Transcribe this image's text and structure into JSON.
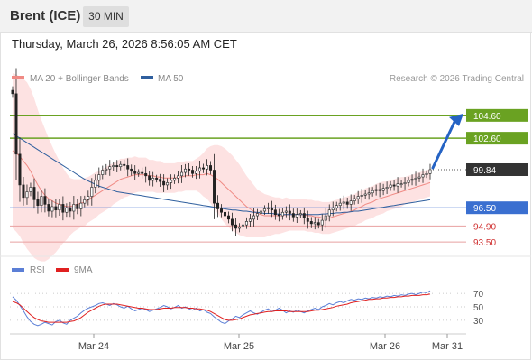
{
  "header": {
    "instrument": "Brent (ICE)",
    "timeframe": "30 MIN",
    "datetime": "Thursday, March 26, 2026 8:56:05 AM CET"
  },
  "legend": {
    "ma20": {
      "label": "MA 20 + Bollinger Bands",
      "color": "#f08a84"
    },
    "ma50": {
      "label": "MA 50",
      "color": "#2f5f9e"
    },
    "copyright": "Research © 2026 Trading Central"
  },
  "rsi_legend": {
    "rsi": {
      "label": "RSI",
      "color": "#5b7fd6"
    },
    "ma9": {
      "label": "9MA",
      "color": "#e02020"
    }
  },
  "colors": {
    "resistance": "#6aa222",
    "support": "#3a6fd0",
    "bollinger_fill": "#fde2e2",
    "price_tag": "#333333",
    "arrow": "#2563c4",
    "support_line2": "#e8a0a0"
  },
  "chart_data": [
    {
      "type": "candlestick",
      "panel": "price",
      "x_ticks": [
        "Mar 24",
        "Mar 25",
        "Mar 26",
        "Mar 31"
      ],
      "ylim": [
        92.4,
        107.2
      ],
      "last_price": 99.84,
      "levels": [
        {
          "value": 104.6,
          "label": "104.60",
          "kind": "resistance"
        },
        {
          "value": 102.6,
          "label": "102.60",
          "kind": "resistance"
        },
        {
          "value": 96.5,
          "label": "96.50",
          "kind": "support"
        },
        {
          "value": 94.9,
          "label": "94.90",
          "kind": "support2"
        },
        {
          "value": 93.5,
          "label": "93.50",
          "kind": "support2"
        }
      ],
      "close": [
        106.5,
        101.2,
        98.5,
        97.4,
        97.9,
        98.3,
        97.2,
        96.7,
        97.5,
        96.8,
        96.2,
        96.6,
        96.3,
        96.8,
        96.1,
        96.5,
        96.2,
        96.8,
        96.4,
        96.9,
        97.2,
        97.5,
        98.3,
        98.9,
        99.4,
        99.8,
        99.9,
        100.1,
        100.2,
        100.1,
        100.3,
        100.2,
        99.9,
        99.7,
        99.5,
        99.6,
        99.5,
        99.3,
        98.9,
        99.1,
        99.0,
        98.8,
        98.5,
        98.7,
        98.9,
        99.1,
        99.3,
        99.6,
        99.9,
        99.8,
        99.5,
        99.7,
        100.0,
        99.9,
        100.2,
        99.8,
        96.9,
        96.4,
        96.1,
        95.8,
        95.5,
        95.0,
        94.7,
        94.8,
        95.0,
        95.3,
        95.5,
        95.8,
        96.0,
        96.2,
        96.4,
        96.5,
        96.3,
        95.9,
        95.8,
        96.1,
        96.2,
        96.0,
        95.7,
        95.9,
        96.0,
        95.6,
        95.3,
        95.1,
        95.2,
        95.0,
        95.4,
        95.8,
        96.3,
        96.5,
        96.7,
        96.9,
        97.0,
        96.8,
        97.1,
        97.3,
        97.5,
        97.6,
        97.7,
        97.8,
        98.0,
        98.1,
        98.0,
        98.2,
        98.3,
        98.5,
        98.4,
        98.6,
        98.6,
        98.7,
        98.9,
        99.0,
        99.1,
        99.2,
        99.4,
        99.5,
        99.84
      ],
      "ma20": [
        101.5,
        101.3,
        101.0,
        100.6,
        100.2,
        99.7,
        99.1,
        98.5,
        98.0,
        97.6,
        97.3,
        97.1,
        96.9,
        96.8,
        96.7,
        96.6,
        96.6,
        96.7,
        96.8,
        96.9,
        97.0,
        97.2,
        97.4,
        97.6,
        97.8,
        98.0,
        98.2,
        98.4,
        98.6,
        98.8,
        99.0,
        99.1,
        99.2,
        99.3,
        99.4,
        99.4,
        99.4,
        99.4,
        99.3,
        99.3,
        99.2,
        99.2,
        99.1,
        99.1,
        99.1,
        99.1,
        99.2,
        99.2,
        99.3,
        99.3,
        99.3,
        99.4,
        99.4,
        99.4,
        99.5,
        99.4,
        99.2,
        99.0,
        98.7,
        98.4,
        98.1,
        97.8,
        97.5,
        97.2,
        96.9,
        96.6,
        96.4,
        96.2,
        96.0,
        95.9,
        95.8,
        95.8,
        95.8,
        95.8,
        95.8,
        95.8,
        95.9,
        95.9,
        95.9,
        95.9,
        95.9,
        95.9,
        95.8,
        95.8,
        95.7,
        95.7,
        95.6,
        95.6,
        95.6,
        95.7,
        95.8,
        95.9,
        96.0,
        96.1,
        96.2,
        96.3,
        96.5,
        96.6,
        96.8,
        96.9,
        97.0,
        97.2,
        97.3,
        97.4,
        97.5,
        97.6,
        97.7,
        97.8,
        97.9,
        98.0,
        98.1,
        98.2,
        98.3,
        98.4,
        98.5,
        98.6,
        98.7
      ],
      "ma50": [
        103.0,
        102.8,
        102.6,
        102.4,
        102.2,
        102.0,
        101.8,
        101.6,
        101.4,
        101.2,
        101.0,
        100.8,
        100.6,
        100.4,
        100.2,
        100.0,
        99.8,
        99.6,
        99.4,
        99.2,
        99.0,
        98.85,
        98.7,
        98.55,
        98.4,
        98.3,
        98.2,
        98.1,
        98.0,
        97.9,
        97.85,
        97.8,
        97.75,
        97.7,
        97.65,
        97.6,
        97.55,
        97.5,
        97.45,
        97.4,
        97.35,
        97.3,
        97.25,
        97.2,
        97.15,
        97.1,
        97.05,
        97.0,
        96.95,
        96.9,
        96.85,
        96.8,
        96.75,
        96.7,
        96.65,
        96.6,
        96.55,
        96.5,
        96.45,
        96.4,
        96.35,
        96.3,
        96.3,
        96.25,
        96.2,
        96.2,
        96.15,
        96.1,
        96.1,
        96.05,
        96.0,
        96.0,
        96.0,
        95.95,
        95.95,
        95.9,
        95.9,
        95.9,
        95.9,
        95.9,
        95.9,
        95.9,
        95.9,
        95.9,
        95.9,
        95.9,
        95.95,
        95.95,
        96.0,
        96.0,
        96.05,
        96.05,
        96.1,
        96.1,
        96.15,
        96.2,
        96.2,
        96.25,
        96.3,
        96.35,
        96.4,
        96.45,
        96.5,
        96.55,
        96.6,
        96.65,
        96.7,
        96.75,
        96.8,
        96.85,
        96.9,
        96.95,
        97.0,
        97.05,
        97.1,
        97.15,
        97.2
      ],
      "bb_width": [
        6.8,
        6.9,
        7.0,
        7.2,
        7.3,
        7.2,
        7.0,
        6.6,
        6.2,
        5.8,
        5.3,
        4.8,
        4.3,
        3.8,
        3.3,
        2.9,
        2.5,
        2.3,
        2.2,
        2.1,
        2.1,
        2.0,
        2.0,
        2.0,
        1.9,
        1.9,
        1.9,
        1.9,
        1.8,
        1.8,
        1.8,
        1.7,
        1.7,
        1.6,
        1.6,
        1.5,
        1.5,
        1.5,
        1.4,
        1.4,
        1.4,
        1.4,
        1.3,
        1.3,
        1.3,
        1.3,
        1.3,
        1.3,
        1.3,
        1.3,
        1.3,
        1.4,
        1.6,
        1.9,
        2.2,
        2.5,
        2.8,
        3.0,
        3.2,
        3.3,
        3.3,
        3.3,
        3.2,
        3.1,
        2.9,
        2.7,
        2.5,
        2.3,
        2.1,
        2.0,
        1.9,
        1.8,
        1.7,
        1.6,
        1.6,
        1.5,
        1.5,
        1.4,
        1.4,
        1.4,
        1.4,
        1.4,
        1.4,
        1.4,
        1.4,
        1.4,
        1.4,
        1.4,
        1.4,
        1.4,
        1.4,
        1.4,
        1.4,
        1.4,
        1.4,
        1.4,
        1.4,
        1.4,
        1.4,
        1.4,
        1.4,
        1.4,
        1.4,
        1.4,
        1.3,
        1.3,
        1.3,
        1.3,
        1.3,
        1.2,
        1.2,
        1.2,
        1.2,
        1.2,
        1.2,
        1.2,
        1.2
      ]
    },
    {
      "type": "line",
      "panel": "rsi",
      "ylim": [
        15,
        85
      ],
      "y_ticks": [
        70,
        50,
        30
      ],
      "rsi": [
        65,
        60,
        52,
        44,
        35,
        28,
        24,
        22,
        24,
        27,
        25,
        23,
        28,
        30,
        26,
        24,
        30,
        33,
        36,
        41,
        45,
        48,
        50,
        52,
        55,
        56,
        54,
        52,
        55,
        53,
        50,
        48,
        51,
        47,
        44,
        46,
        48,
        46,
        43,
        45,
        47,
        49,
        52,
        50,
        47,
        49,
        52,
        48,
        50,
        47,
        45,
        48,
        44,
        46,
        42,
        40,
        35,
        31,
        27,
        25,
        29,
        32,
        36,
        34,
        38,
        41,
        44,
        41,
        39,
        42,
        45,
        47,
        43,
        45,
        48,
        45,
        41,
        44,
        42,
        45,
        43,
        41,
        44,
        46,
        48,
        46,
        50,
        52,
        55,
        53,
        56,
        58,
        56,
        59,
        61,
        60,
        62,
        61,
        63,
        62,
        64,
        63,
        65,
        64,
        66,
        65,
        67,
        66,
        68,
        67,
        69,
        70,
        68,
        70,
        72,
        71,
        74
      ],
      "ma9": [
        58,
        56,
        53,
        48,
        43,
        38,
        34,
        31,
        29,
        28,
        27,
        27,
        27,
        27,
        27,
        27,
        28,
        29,
        31,
        34,
        38,
        42,
        45,
        48,
        51,
        53,
        54,
        54,
        54,
        54,
        53,
        52,
        51,
        50,
        49,
        48,
        48,
        47,
        46,
        46,
        46,
        47,
        48,
        48,
        48,
        49,
        49,
        49,
        49,
        48,
        48,
        47,
        47,
        46,
        45,
        43,
        40,
        37,
        34,
        31,
        30,
        30,
        31,
        32,
        34,
        36,
        38,
        39,
        40,
        41,
        42,
        43,
        43,
        44,
        44,
        44,
        44,
        43,
        43,
        43,
        43,
        43,
        43,
        44,
        45,
        45,
        46,
        47,
        48,
        49,
        51,
        52,
        53,
        54,
        56,
        57,
        58,
        59,
        60,
        61,
        61,
        62,
        62,
        63,
        63,
        64,
        64,
        65,
        65,
        66,
        66,
        67,
        67,
        67,
        68,
        68,
        69
      ]
    }
  ]
}
